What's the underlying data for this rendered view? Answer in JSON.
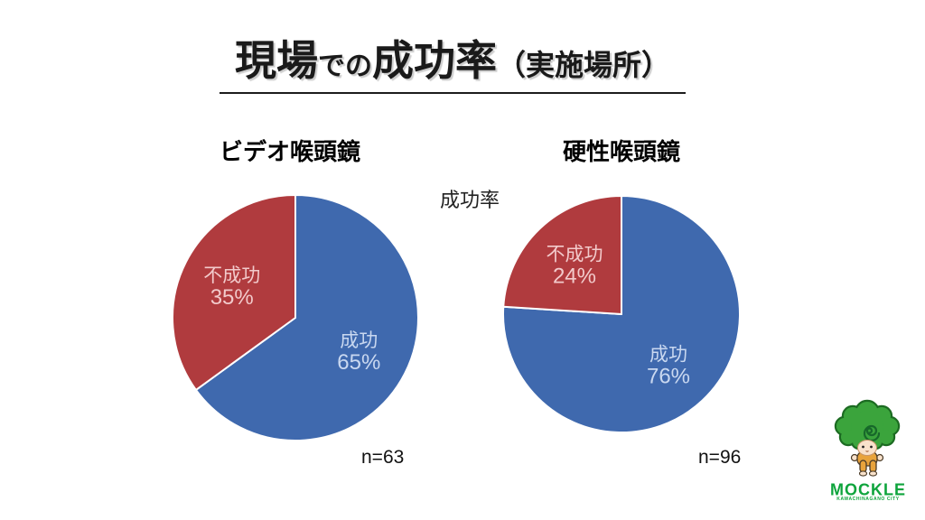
{
  "slide": {
    "title": {
      "part1": "現場",
      "part2": "での",
      "part3": "成功率",
      "part4": "（実施場所）"
    },
    "center_label": "成功率",
    "background_color": "#ffffff"
  },
  "chart_data": [
    {
      "type": "pie",
      "title": "ビデオ喉頭鏡",
      "n_label": "n=63",
      "start_angle": "top",
      "direction": "clockwise",
      "legend": "none",
      "label_position": "inside",
      "slices": [
        {
          "label": "成功",
          "pct": 65,
          "color": "#3F69AE",
          "label_color": "#C9D8F0"
        },
        {
          "label": "不成功",
          "pct": 35,
          "color": "#B03B3E",
          "label_color": "#F2CACB"
        }
      ]
    },
    {
      "type": "pie",
      "title": "硬性喉頭鏡",
      "n_label": "n=96",
      "start_angle": "top",
      "direction": "clockwise",
      "legend": "none",
      "label_position": "inside",
      "slices": [
        {
          "label": "成功",
          "pct": 76,
          "color": "#3F69AE",
          "label_color": "#C9D8F0"
        },
        {
          "label": "不成功",
          "pct": 24,
          "color": "#B03B3E",
          "label_color": "#F2CACB"
        }
      ]
    }
  ],
  "logo": {
    "wordmark": "MOCKLE",
    "subtext": "KAWACHINAGANO CITY",
    "text_color": "#0EA43C",
    "tree_green": "#3BA43C",
    "body_orange": "#E8A33C"
  }
}
